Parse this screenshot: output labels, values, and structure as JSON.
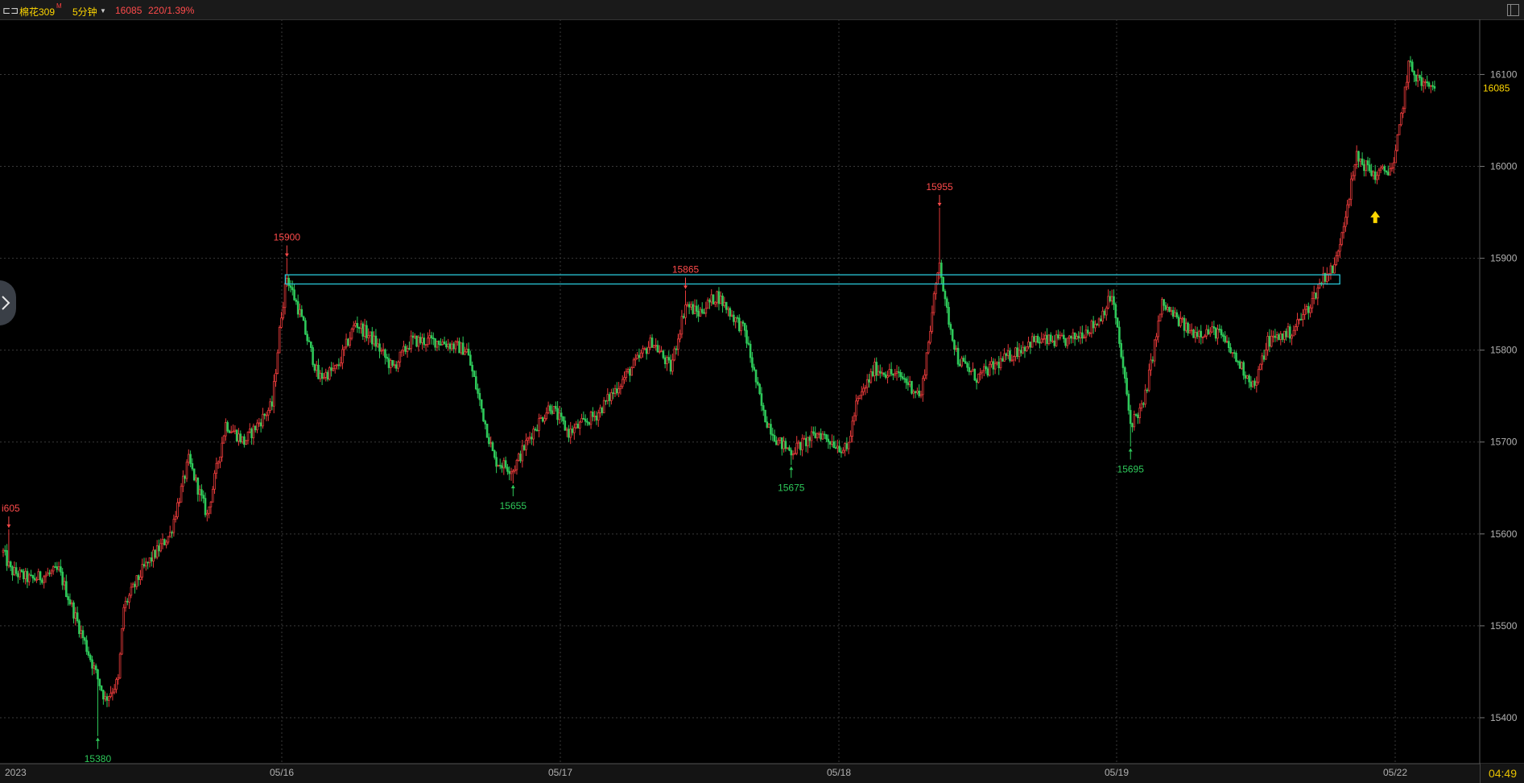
{
  "header": {
    "logo_glyph": "⊏⊐",
    "symbol_name": "棉花309",
    "symbol_mark": "M",
    "period_label": "5分钟",
    "last_price": "16085",
    "change": "220/1.39%",
    "price_tag": "16085",
    "clock": "04:49"
  },
  "colors": {
    "up": "#e63a3a",
    "down": "#2ec95a",
    "grid": "#3a3a3a",
    "box": "#29c8d8",
    "accent": "#ffd700"
  },
  "icons": [
    "chevron-right-icon",
    "up-arrow-icon",
    "window-restore-icon"
  ],
  "chart_data": {
    "type": "candlestick",
    "title": "",
    "ylim": [
      15350,
      16160
    ],
    "y_ticks": [
      16100,
      16000,
      15900,
      15800,
      15700,
      15600,
      15500,
      15400
    ],
    "x_labels": [
      "2023",
      "05/16",
      "05/17",
      "05/18",
      "05/19",
      "05/22"
    ],
    "grid": true,
    "anchors": [
      [
        0,
        15540,
        15580
      ],
      [
        4,
        15605,
        15560
      ],
      [
        15,
        15530,
        15550
      ],
      [
        30,
        15580,
        15560
      ],
      [
        55,
        15450,
        15420
      ],
      [
        62,
        15380,
        15440
      ],
      [
        65,
        15500,
        15520
      ],
      [
        75,
        15580,
        15560
      ],
      [
        90,
        15640,
        15600
      ],
      [
        100,
        15700,
        15680
      ],
      [
        110,
        15660,
        15620
      ],
      [
        120,
        15740,
        15720
      ],
      [
        130,
        15720,
        15700
      ],
      [
        145,
        15760,
        15740
      ],
      [
        150,
        15860,
        15840
      ],
      [
        153,
        15900,
        15880
      ],
      [
        160,
        15860,
        15840
      ],
      [
        170,
        15780,
        15770
      ],
      [
        180,
        15760,
        15780
      ],
      [
        190,
        15850,
        15830
      ],
      [
        200,
        15800,
        15810
      ],
      [
        210,
        15770,
        15780
      ],
      [
        220,
        15830,
        15810
      ],
      [
        235,
        15820,
        15810
      ],
      [
        250,
        15790,
        15800
      ],
      [
        265,
        15700,
        15680
      ],
      [
        275,
        15655,
        15670
      ],
      [
        285,
        15700,
        15710
      ],
      [
        295,
        15750,
        15740
      ],
      [
        305,
        15720,
        15710
      ],
      [
        320,
        15740,
        15730
      ],
      [
        335,
        15780,
        15770
      ],
      [
        350,
        15800,
        15810
      ],
      [
        360,
        15790,
        15780
      ],
      [
        368,
        15865,
        15850
      ],
      [
        375,
        15830,
        15840
      ],
      [
        385,
        15850,
        15860
      ],
      [
        400,
        15830,
        15820
      ],
      [
        410,
        15740,
        15730
      ],
      [
        418,
        15710,
        15700
      ],
      [
        425,
        15675,
        15690
      ],
      [
        440,
        15720,
        15710
      ],
      [
        455,
        15700,
        15690
      ],
      [
        460,
        15750,
        15740
      ],
      [
        470,
        15790,
        15780
      ],
      [
        485,
        15760,
        15770
      ],
      [
        495,
        15760,
        15750
      ],
      [
        505,
        15955,
        15900
      ],
      [
        508,
        15860,
        15850
      ],
      [
        515,
        15780,
        15790
      ],
      [
        525,
        15760,
        15770
      ],
      [
        540,
        15780,
        15790
      ],
      [
        555,
        15820,
        15810
      ],
      [
        565,
        15800,
        15810
      ],
      [
        575,
        15820,
        15810
      ],
      [
        590,
        15840,
        15830
      ],
      [
        598,
        15870,
        15860
      ],
      [
        604,
        15790,
        15780
      ],
      [
        608,
        15695,
        15720
      ],
      [
        615,
        15750,
        15740
      ],
      [
        625,
        15860,
        15850
      ],
      [
        640,
        15830,
        15820
      ],
      [
        655,
        15830,
        15820
      ],
      [
        665,
        15800,
        15790
      ],
      [
        675,
        15770,
        15760
      ],
      [
        682,
        15800,
        15810
      ],
      [
        695,
        15830,
        15820
      ],
      [
        705,
        15860,
        15850
      ],
      [
        712,
        15870,
        15880
      ],
      [
        718,
        15880,
        15890
      ],
      [
        725,
        15920,
        15960
      ],
      [
        730,
        16040,
        16010
      ],
      [
        740,
        16000,
        15990
      ],
      [
        750,
        16010,
        16000
      ],
      [
        758,
        16140,
        16110
      ],
      [
        765,
        16100,
        16090
      ],
      [
        772,
        16100,
        16085
      ]
    ],
    "annotations": [
      {
        "label": "i605",
        "bar": 3,
        "price": 15605,
        "kind": "high"
      },
      {
        "label": "15380",
        "bar": 51,
        "price": 15380,
        "kind": "low"
      },
      {
        "label": "15900",
        "bar": 153,
        "price": 15900,
        "kind": "high"
      },
      {
        "label": "15655",
        "bar": 275,
        "price": 15655,
        "kind": "low"
      },
      {
        "label": "15865",
        "bar": 368,
        "price": 15865,
        "kind": "high"
      },
      {
        "label": "15675",
        "bar": 425,
        "price": 15675,
        "kind": "low"
      },
      {
        "label": "15955",
        "bar": 505,
        "price": 15955,
        "kind": "high"
      },
      {
        "label": "15695",
        "bar": 608,
        "price": 15695,
        "kind": "low"
      }
    ],
    "zone": {
      "x0": 153,
      "x1": 720,
      "y0": 15872,
      "y1": 15882
    },
    "signal": {
      "bar": 740,
      "price": 15955,
      "kind": "buy"
    }
  }
}
